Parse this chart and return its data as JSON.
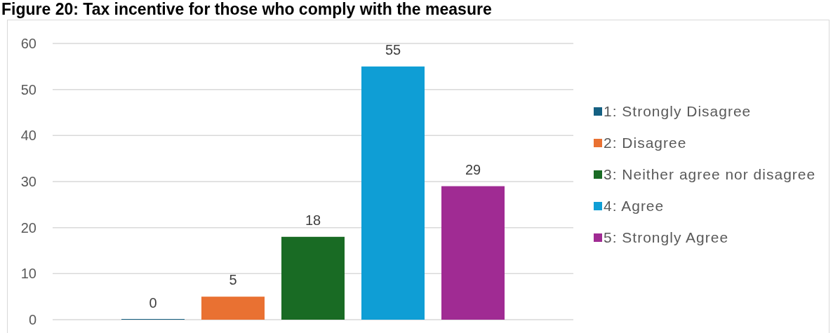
{
  "chart_data": {
    "type": "bar",
    "title": "Figure 20: Tax incentive for those who comply with the measure",
    "categories": [
      null
    ],
    "series": [
      {
        "name": "1: Strongly Disagree",
        "color": "#156082",
        "values": [
          0
        ]
      },
      {
        "name": "2: Disagree",
        "color": "#e97132",
        "values": [
          5
        ]
      },
      {
        "name": "3: Neither agree nor disagree",
        "color": "#196b24",
        "values": [
          18
        ]
      },
      {
        "name": "4: Agree",
        "color": "#0f9ed5",
        "values": [
          55
        ]
      },
      {
        "name": "5: Strongly Agree",
        "color": "#a02b93",
        "values": [
          29
        ]
      }
    ],
    "ylim": [
      0,
      60
    ],
    "yticks": [
      0,
      10,
      20,
      30,
      40,
      50,
      60
    ],
    "grid": "y",
    "legend": "right",
    "data_labels": true
  }
}
